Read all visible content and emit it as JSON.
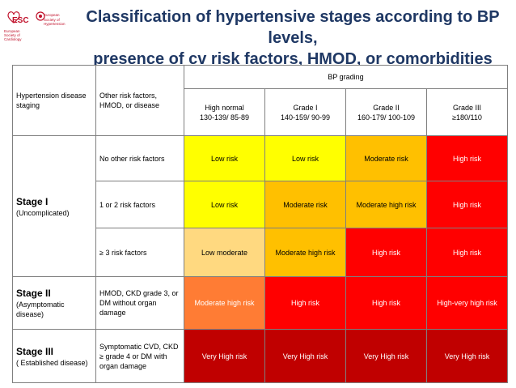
{
  "logos": {
    "esc": {
      "name": "ESC",
      "subtitle": "European Society of Cardiology"
    },
    "esh": {
      "name": "European Society of Hypertension"
    }
  },
  "title": {
    "line1": "Classification of hypertensive stages according to BP levels,",
    "line2": "presence of cv risk factors, HMOD, or comorbidities"
  },
  "table": {
    "col_staging": "Hypertension disease staging",
    "col_risk": "Other risk factors, HMOD, or disease",
    "bp_grading": "BP grading",
    "grades": [
      {
        "name": "High normal",
        "range": "130-139/ 85-89"
      },
      {
        "name": "Grade I",
        "range": "140-159/ 90-99"
      },
      {
        "name": "Grade II",
        "range": "160-179/ 100-109"
      },
      {
        "name": "Grade III",
        "range": "≥180/110"
      }
    ],
    "stages": [
      {
        "title": "Stage I",
        "subtitle": "(Uncomplicated)"
      },
      {
        "title": "Stage II",
        "subtitle": "(Asymptomatic disease)"
      },
      {
        "title": "Stage III",
        "subtitle": "( Established disease)"
      }
    ],
    "rows": [
      {
        "factor": "No other risk factors",
        "cells": [
          "Low risk",
          "Low risk",
          "Moderate risk",
          "High risk"
        ]
      },
      {
        "factor": "1 or 2 risk factors",
        "cells": [
          "Low risk",
          "Moderate risk",
          "Moderate high risk",
          "High risk"
        ]
      },
      {
        "factor": "≥ 3 risk factors",
        "cells": [
          "Low moderate",
          "Moderate high risk",
          "High risk",
          "High risk"
        ]
      },
      {
        "factor": "HMOD, CKD grade 3, or DM without organ damage",
        "cells": [
          "Moderate  high risk",
          "High risk",
          "High risk",
          "High-very high risk"
        ]
      },
      {
        "factor": "Symptomatic CVD, CKD ≥ grade 4 or DM with organ damage",
        "cells": [
          "Very High risk",
          "Very High risk",
          "Very High risk",
          "Very High risk"
        ]
      }
    ]
  },
  "colors": {
    "low": "#ffff00",
    "low_moderate": "#ffd980",
    "moderate": "#ffc000",
    "moderate_high": "#ff7c34",
    "high": "#ff0000",
    "very_high": "#c00000",
    "title": "#1f3864"
  }
}
